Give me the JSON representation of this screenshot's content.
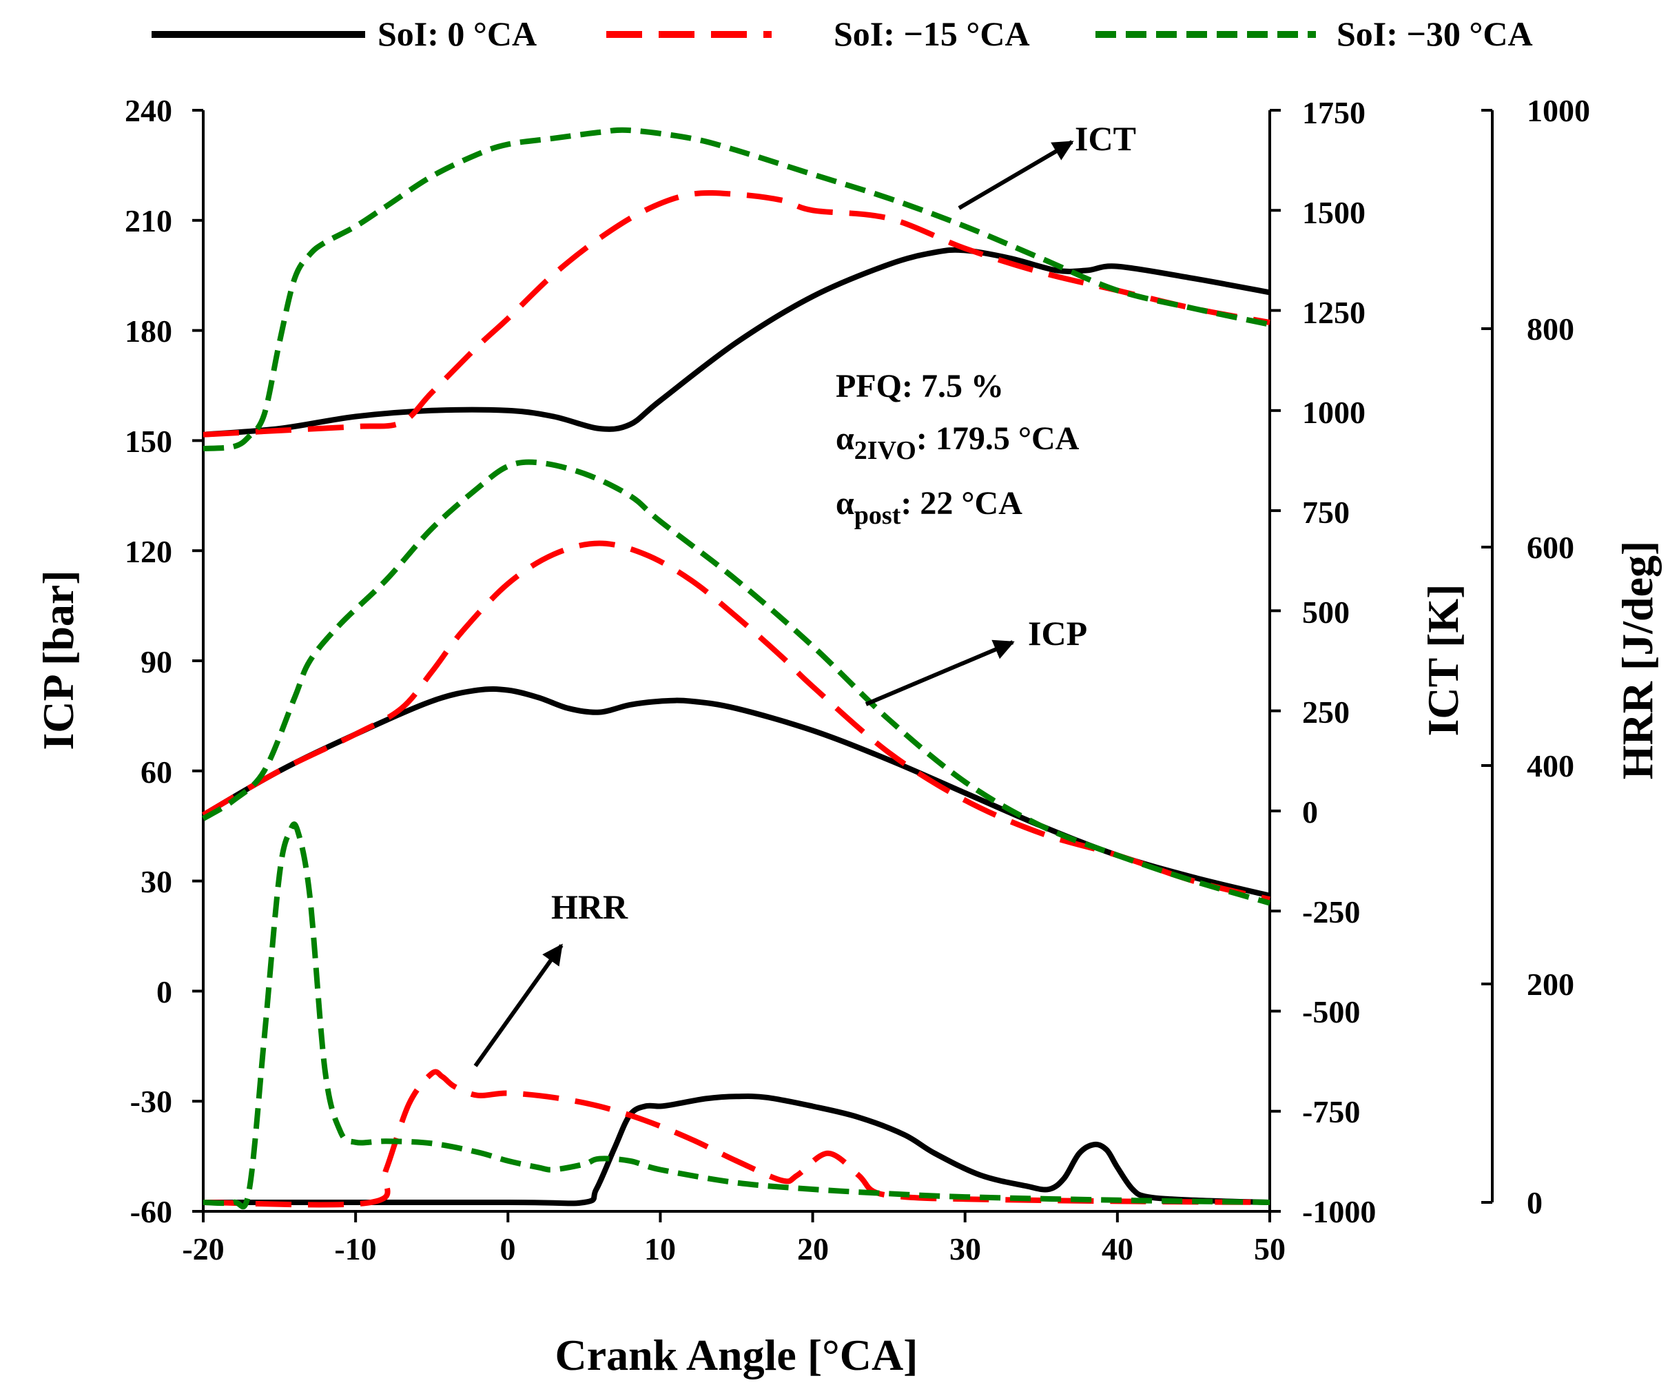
{
  "chart_data": {
    "type": "line",
    "xlabel": "Crank Angle [°CA]",
    "x_ticks": [
      "-20",
      "-10",
      "0",
      "10",
      "20",
      "30",
      "40",
      "50"
    ],
    "xlim": [
      -20,
      50
    ],
    "axes": {
      "icp": {
        "label": "ICP [bar]",
        "ylim": [
          -60,
          240
        ],
        "ticks": [
          "-60",
          "-30",
          "0",
          "30",
          "60",
          "90",
          "120",
          "150",
          "180",
          "210",
          "240"
        ]
      },
      "ict": {
        "label": "ICT [K]",
        "ylim": [
          -1000,
          1750
        ],
        "ticks": [
          "-1000",
          "-750",
          "-500",
          "-250",
          "0",
          "250",
          "500",
          "750",
          "1000",
          "1250",
          "1500",
          "1750"
        ]
      },
      "hrr": {
        "label": "HRR [J/deg]",
        "ylim": [
          0,
          1000
        ],
        "ticks": [
          "0",
          "200",
          "400",
          "600",
          "800",
          "1000"
        ]
      }
    },
    "legend": [
      {
        "label": "SoI: 0 °CA",
        "color": "#000000",
        "style": "solid"
      },
      {
        "label": "SoI: −15 °CA",
        "color": "#ff0000",
        "style": "dashed"
      },
      {
        "label": "SoI: −30 °CA",
        "color": "#008000",
        "style": "dashed"
      }
    ],
    "annotations": {
      "ict_label": "ICT",
      "icp_label": "ICP",
      "hrr_label": "HRR",
      "pfq": "PFQ: 7.5 %",
      "a2ivo_symbol": "α",
      "a2ivo_sub": "2IVO",
      "a2ivo_value": ": 179.5 °CA",
      "apost_symbol": "α",
      "apost_sub": "post",
      "apost_value": ": 22 °CA"
    },
    "series": [
      {
        "name": "SoI: 0 °CA",
        "quantity": "ICT",
        "axis": "ict",
        "x": [
          -20,
          -15,
          -10,
          -5,
          0,
          3,
          6,
          8,
          10,
          15,
          20,
          25,
          28,
          30,
          33,
          36,
          38,
          40,
          45,
          50
        ],
        "y": [
          940,
          955,
          985,
          1000,
          1000,
          985,
          955,
          965,
          1025,
          1170,
          1285,
          1365,
          1395,
          1400,
          1380,
          1350,
          1350,
          1360,
          1330,
          1295
        ]
      },
      {
        "name": "SoI: −15 °CA",
        "quantity": "ICT",
        "axis": "ict",
        "x": [
          -20,
          -15,
          -10,
          -7,
          -5,
          -2,
          0,
          3,
          6,
          9,
          12,
          15,
          18,
          20,
          25,
          30,
          35,
          40,
          45,
          50
        ],
        "y": [
          940,
          950,
          960,
          970,
          1045,
          1160,
          1230,
          1340,
          1430,
          1500,
          1540,
          1540,
          1525,
          1500,
          1480,
          1405,
          1345,
          1300,
          1255,
          1220
        ]
      },
      {
        "name": "SoI: −30 °CA",
        "quantity": "ICT",
        "axis": "ict",
        "x": [
          -20,
          -18,
          -17,
          -16,
          -15,
          -14,
          -13,
          -12,
          -10,
          -8,
          -5,
          -2,
          0,
          3,
          6,
          8,
          12,
          15,
          20,
          25,
          30,
          35,
          40,
          45,
          50
        ],
        "y": [
          905,
          910,
          935,
          990,
          1170,
          1330,
          1390,
          1420,
          1460,
          1510,
          1585,
          1640,
          1665,
          1680,
          1695,
          1700,
          1680,
          1650,
          1590,
          1530,
          1460,
          1380,
          1300,
          1255,
          1215
        ]
      },
      {
        "name": "SoI: 0 °CA",
        "quantity": "ICP",
        "axis": "icp",
        "x": [
          -20,
          -15,
          -10,
          -5,
          -2,
          0,
          2,
          4,
          6,
          8,
          10,
          12,
          15,
          20,
          25,
          30,
          35,
          40,
          45,
          50
        ],
        "y": [
          48,
          60,
          70,
          79,
          82,
          82,
          80,
          77,
          76,
          78,
          79,
          79,
          77,
          71,
          63,
          54,
          45,
          37,
          31,
          26
        ]
      },
      {
        "name": "SoI: −15 °CA",
        "quantity": "ICP",
        "axis": "icp",
        "x": [
          -20,
          -15,
          -10,
          -7,
          -5,
          -3,
          0,
          3,
          6,
          9,
          12,
          15,
          18,
          20,
          25,
          30,
          35,
          40,
          45,
          50
        ],
        "y": [
          48,
          60,
          70,
          77,
          87,
          98,
          111,
          119,
          122,
          119,
          112,
          102,
          91,
          83,
          65,
          52,
          43,
          37,
          30,
          25
        ]
      },
      {
        "name": "SoI: −30 °CA",
        "quantity": "ICP",
        "axis": "icp",
        "x": [
          -20,
          -18,
          -16,
          -14,
          -13,
          -11,
          -8,
          -5,
          -2,
          0,
          2,
          5,
          8,
          10,
          15,
          20,
          25,
          30,
          35,
          40,
          45,
          50
        ],
        "y": [
          47,
          52,
          60,
          80,
          90,
          100,
          112,
          126,
          137,
          143,
          144,
          141,
          135,
          128,
          112,
          94,
          74,
          57,
          45,
          37,
          30,
          24
        ]
      },
      {
        "name": "SoI: 0 °CA",
        "quantity": "HRR",
        "axis": "hrr",
        "x": [
          -20,
          0,
          5,
          5.8,
          7,
          8,
          9,
          10,
          11,
          13,
          15,
          17,
          20,
          23,
          26,
          28,
          31,
          34,
          35.5,
          36.5,
          37.5,
          38.5,
          39.3,
          40,
          41,
          42,
          45,
          50
        ],
        "y": [
          0,
          0,
          0,
          12,
          50,
          80,
          88,
          88,
          90,
          95,
          97,
          96,
          88,
          78,
          62,
          45,
          25,
          15,
          12,
          22,
          45,
          53,
          48,
          32,
          12,
          5,
          2,
          0
        ]
      },
      {
        "name": "SoI: −15 °CA",
        "quantity": "HRR",
        "axis": "hrr",
        "x": [
          -20,
          -9,
          -8,
          -6.5,
          -5,
          -4.3,
          -3.5,
          -2,
          0,
          3,
          6,
          9,
          12,
          15,
          18,
          19,
          21,
          23,
          24,
          26,
          30,
          40,
          50
        ],
        "y": [
          0,
          0,
          30,
          90,
          118,
          115,
          106,
          98,
          100,
          96,
          88,
          75,
          58,
          38,
          20,
          25,
          45,
          25,
          10,
          5,
          3,
          1,
          0
        ]
      },
      {
        "name": "SoI: −30 °CA",
        "quantity": "HRR",
        "axis": "hrr",
        "x": [
          -20,
          -18,
          -17,
          -16,
          -15,
          -14.3,
          -13.8,
          -13,
          -12,
          -11,
          -10,
          -8,
          -5,
          -2,
          0,
          2,
          3,
          5,
          6,
          8,
          10,
          15,
          20,
          25,
          30,
          40,
          50
        ],
        "y": [
          0,
          0,
          10,
          150,
          300,
          340,
          340,
          280,
          120,
          65,
          55,
          56,
          54,
          46,
          38,
          32,
          30,
          35,
          40,
          38,
          30,
          18,
          12,
          8,
          5,
          2,
          0
        ]
      }
    ]
  }
}
